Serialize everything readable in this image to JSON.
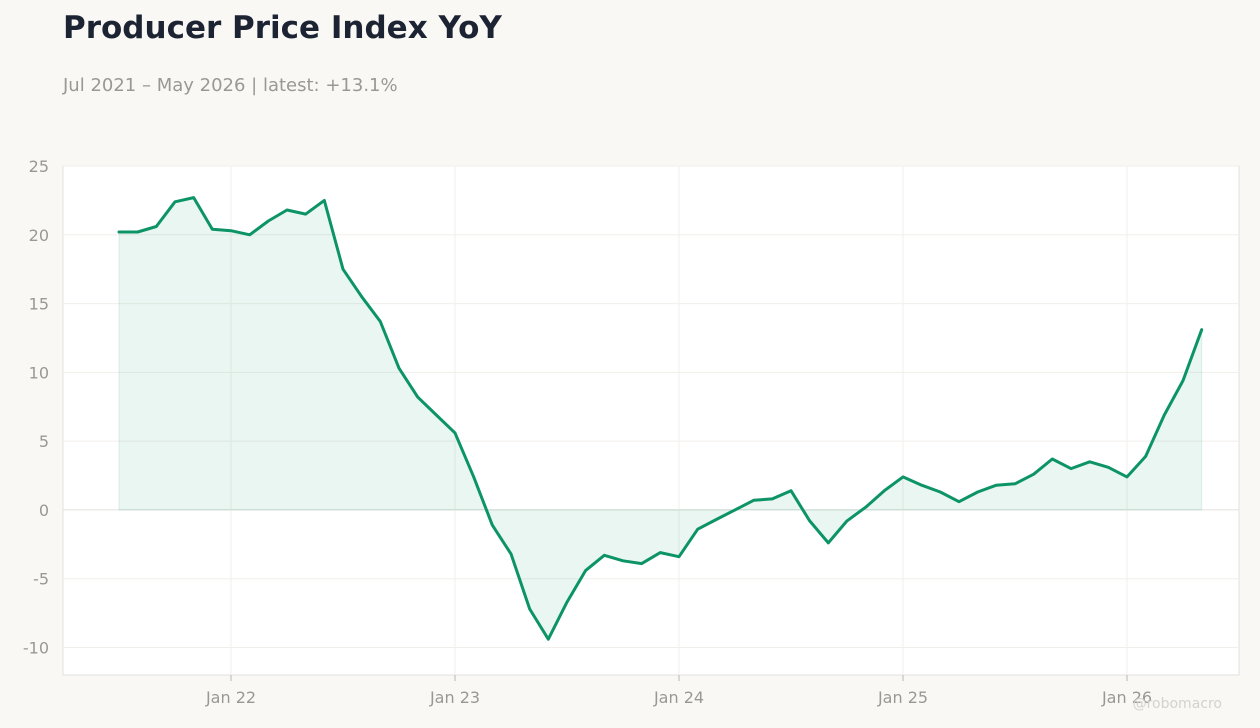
{
  "header": {
    "title": "Producer Price Index YoY",
    "subtitle": "Jul 2021 – May 2026 | latest: +13.1%"
  },
  "watermark": "@robomacro",
  "colors": {
    "line": "#0c9467",
    "fill": "#0c9467",
    "background": "#f9f8f5",
    "plot_background": "#ffffff",
    "grid": "#f0efec",
    "zero_line": "#e3e1dc"
  },
  "chart_data": {
    "type": "area",
    "title": "Producer Price Index YoY",
    "subtitle": "Jul 2021 – May 2026 | latest: +13.1%",
    "xlabel": "",
    "ylabel": "",
    "x_start": "2021-07",
    "x_ticks": [
      "2022-01",
      "2023-01",
      "2024-01",
      "2025-01",
      "2026-01"
    ],
    "x_tick_labels": [
      "Jan 22",
      "Jan 23",
      "Jan 24",
      "Jan 25",
      "Jan 26"
    ],
    "xlim": [
      "2021-04",
      "2026-07"
    ],
    "y_ticks": [
      -10,
      -5,
      0,
      5,
      10,
      15,
      20,
      25
    ],
    "y_tick_labels": [
      "-10",
      "-5",
      "0",
      "5",
      "10",
      "15",
      "20",
      "25"
    ],
    "ylim": [
      -12,
      25
    ],
    "grid": true,
    "legend": "none",
    "series": [
      {
        "x": [
          "2021-07",
          "2021-08",
          "2021-09",
          "2021-10",
          "2021-11",
          "2021-12",
          "2022-01",
          "2022-02",
          "2022-03",
          "2022-04",
          "2022-05",
          "2022-06",
          "2022-07",
          "2022-08",
          "2022-09",
          "2022-10",
          "2022-11",
          "2022-12",
          "2023-01",
          "2023-02",
          "2023-03",
          "2023-04",
          "2023-05",
          "2023-06",
          "2023-07",
          "2023-08",
          "2023-09",
          "2023-10",
          "2023-11",
          "2023-12",
          "2024-01",
          "2024-02",
          "2024-03",
          "2024-04",
          "2024-05",
          "2024-06",
          "2024-07",
          "2024-08",
          "2024-09",
          "2024-10",
          "2024-11",
          "2024-12",
          "2025-01",
          "2025-02",
          "2025-03",
          "2025-04",
          "2025-05",
          "2025-06",
          "2025-07",
          "2025-08",
          "2025-09",
          "2025-10",
          "2025-11",
          "2025-12",
          "2026-01",
          "2026-02",
          "2026-03",
          "2026-04",
          "2026-05"
        ],
        "values": [
          20.2,
          20.2,
          20.6,
          22.4,
          22.7,
          20.4,
          20.3,
          20.0,
          21.0,
          21.8,
          21.5,
          22.5,
          17.5,
          15.5,
          13.7,
          10.3,
          8.2,
          6.9,
          5.6,
          2.4,
          -1.1,
          -3.2,
          -7.2,
          -9.4,
          -6.7,
          -4.4,
          -3.3,
          -3.7,
          -3.9,
          -3.1,
          -3.4,
          -1.4,
          -0.7,
          0.0,
          0.7,
          0.8,
          1.4,
          -0.8,
          -2.4,
          -0.8,
          0.2,
          1.4,
          2.4,
          1.8,
          1.3,
          0.6,
          1.3,
          1.8,
          1.9,
          2.6,
          3.7,
          3.0,
          3.5,
          3.1,
          2.4,
          3.9,
          6.9,
          9.4,
          13.1
        ]
      }
    ]
  }
}
